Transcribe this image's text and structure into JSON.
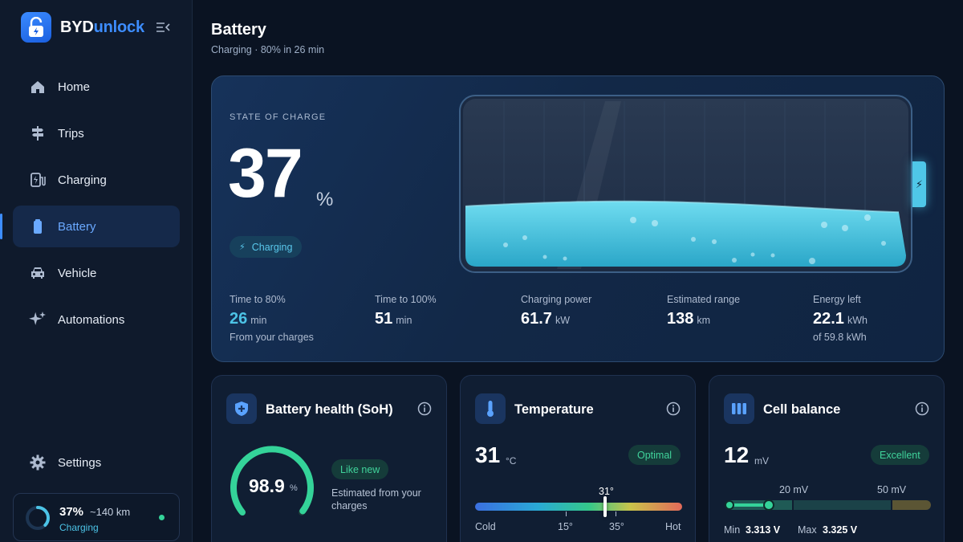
{
  "brand": {
    "part1": "BYD",
    "part2": "unlock"
  },
  "nav": {
    "items": [
      {
        "label": "Home",
        "icon": "home-icon"
      },
      {
        "label": "Trips",
        "icon": "signpost-icon"
      },
      {
        "label": "Charging",
        "icon": "ev-station-icon"
      },
      {
        "label": "Battery",
        "icon": "battery-icon",
        "active": true
      },
      {
        "label": "Vehicle",
        "icon": "car-icon"
      },
      {
        "label": "Automations",
        "icon": "sparkle-icon"
      }
    ],
    "settings": {
      "label": "Settings",
      "icon": "gear-icon"
    }
  },
  "mini_status": {
    "percent": "37%",
    "range": "~140 km",
    "status": "Charging",
    "level": 0.37
  },
  "header": {
    "title": "Battery",
    "subtitle": "Charging · 80% in 26 min"
  },
  "hero": {
    "label": "STATE OF CHARGE",
    "value": "37",
    "unit": "%",
    "pill": "Charging",
    "fill_level": 0.37,
    "stats": [
      {
        "label": "Time to 80%",
        "value": "26",
        "unit": "min",
        "sub": "From your charges"
      },
      {
        "label": "Time to 100%",
        "value": "51",
        "unit": "min",
        "sub": ""
      },
      {
        "label": "Charging power",
        "value": "61.7",
        "unit": "kW",
        "sub": ""
      },
      {
        "label": "Estimated range",
        "value": "138",
        "unit": "km",
        "sub": ""
      },
      {
        "label": "Energy left",
        "value": "22.1",
        "unit": "kWh",
        "sub": "of 59.8 kWh"
      }
    ]
  },
  "health": {
    "title": "Battery health (SoH)",
    "value": "98.9",
    "unit": "%",
    "badge": "Like new",
    "note": "Estimated from your charges",
    "level": 0.989
  },
  "temperature": {
    "title": "Temperature",
    "value": "31",
    "unit": "°C",
    "badge": "Optimal",
    "marker_label": "31°",
    "scale": {
      "cold": "Cold",
      "low": "15°",
      "high": "35°",
      "hot": "Hot"
    }
  },
  "cell_balance": {
    "title": "Cell balance",
    "value": "12",
    "unit": "mV",
    "badge": "Excellent",
    "thresholds": [
      "20 mV",
      "50 mV"
    ],
    "min_label": "Min",
    "min_value": "3.313 V",
    "max_label": "Max",
    "max_value": "3.325 V"
  },
  "colors": {
    "accent": "#3d8dff",
    "cyan": "#4cc3e6",
    "green": "#34d399",
    "bg": "#0a1322"
  }
}
